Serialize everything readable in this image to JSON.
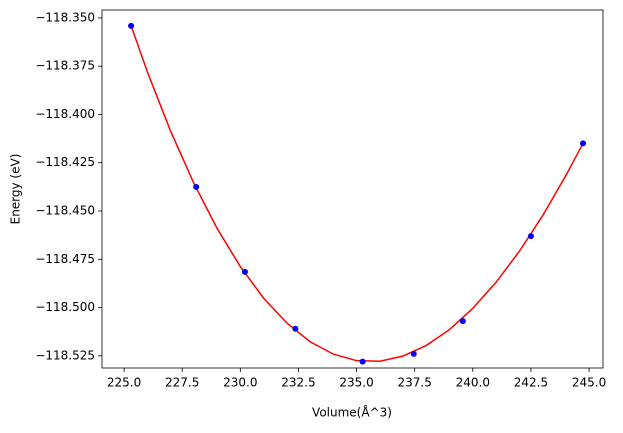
{
  "chart_data": {
    "type": "scatter",
    "xlabel": "Volume(Å^3)",
    "ylabel": "Energy (eV)",
    "xlim": [
      224.05,
      245.6
    ],
    "ylim": [
      -118.5313,
      -118.3459
    ],
    "xticks": [
      {
        "value": 225,
        "label": "225.0"
      },
      {
        "value": 227.5,
        "label": "227.5"
      },
      {
        "value": 230,
        "label": "230.0"
      },
      {
        "value": 232.5,
        "label": "232.5"
      },
      {
        "value": 235,
        "label": "235.0"
      },
      {
        "value": 237.5,
        "label": "237.5"
      },
      {
        "value": 240,
        "label": "240.0"
      },
      {
        "value": 242.5,
        "label": "242.5"
      },
      {
        "value": 245,
        "label": "245.0"
      }
    ],
    "yticks": [
      {
        "value": -118.35,
        "label": "−118.350"
      },
      {
        "value": -118.375,
        "label": "−118.375"
      },
      {
        "value": -118.4,
        "label": "−118.400"
      },
      {
        "value": -118.425,
        "label": "−118.425"
      },
      {
        "value": -118.45,
        "label": "−118.450"
      },
      {
        "value": -118.475,
        "label": "−118.475"
      },
      {
        "value": -118.5,
        "label": "−118.500"
      },
      {
        "value": -118.525,
        "label": "−118.525"
      }
    ],
    "series": [
      {
        "mode": "line",
        "color": "#ff0000",
        "x": [
          225.3,
          226,
          227,
          228,
          229,
          230,
          231,
          232,
          233,
          234,
          235,
          236,
          237,
          238,
          239,
          240,
          241,
          242,
          243,
          244,
          244.74
        ],
        "values": [
          -118.354,
          -118.3779,
          -118.4086,
          -118.4356,
          -118.459,
          -118.4788,
          -118.4951,
          -118.508,
          -118.5177,
          -118.5241,
          -118.5275,
          -118.5278,
          -118.5251,
          -118.5196,
          -118.5114,
          -118.5004,
          -118.4869,
          -118.4709,
          -118.4525,
          -118.4317,
          -118.415
        ]
      },
      {
        "mode": "markers",
        "color": "#0000ff",
        "x": [
          225.3,
          228.1,
          230.2,
          232.37,
          235.26,
          237.46,
          239.57,
          242.5,
          244.74
        ],
        "values": [
          -118.3541,
          -118.4375,
          -118.4815,
          -118.511,
          -118.528,
          -118.524,
          -118.507,
          -118.463,
          -118.415
        ]
      }
    ]
  }
}
